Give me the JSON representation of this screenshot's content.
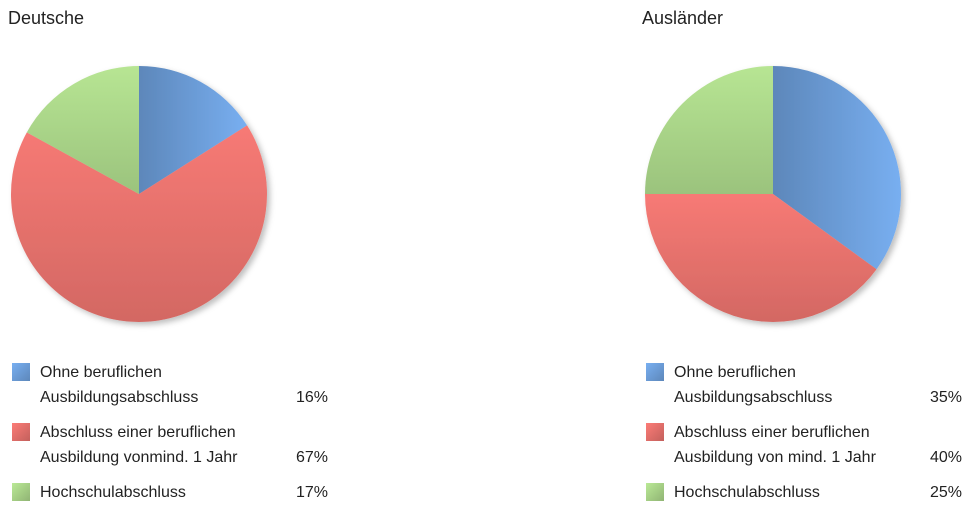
{
  "chart_data": [
    {
      "type": "pie",
      "title": "Deutsche",
      "categories": [
        "Ohne beruflichen Ausbildungsabschluss",
        "Abschluss einer beruflichen Ausbildung vonmind. 1 Jahr",
        "Hochschulabschluss"
      ],
      "values": [
        16,
        67,
        17
      ],
      "value_labels": [
        "16%",
        "67%",
        "17%"
      ],
      "colors": [
        "#6d9fdb",
        "#e5716c",
        "#a9d488"
      ]
    },
    {
      "type": "pie",
      "title": "Ausländer",
      "categories": [
        "Ohne beruflichen Ausbildungsabschluss",
        "Abschluss einer beruflichen Ausbildung von mind. 1 Jahr",
        "Hochschulabschluss"
      ],
      "values": [
        35,
        40,
        25
      ],
      "value_labels": [
        "35%",
        "40%",
        "25%"
      ],
      "colors": [
        "#6d9fdb",
        "#e5716c",
        "#a9d488"
      ]
    }
  ]
}
